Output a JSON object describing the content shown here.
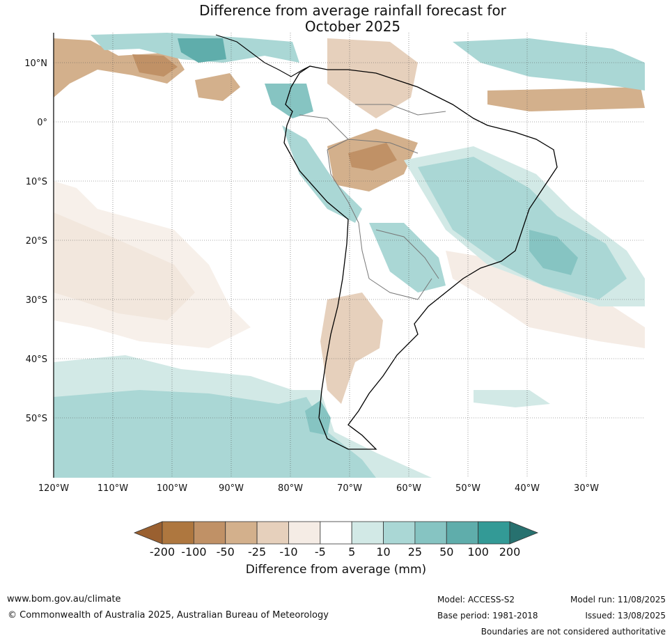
{
  "title": {
    "line1": "Difference from average rainfall forecast for",
    "line2": "October 2025"
  },
  "map": {
    "region": "South America",
    "lat_labels": [
      "10°N",
      "0°",
      "10°S",
      "20°S",
      "30°S",
      "40°S",
      "50°S"
    ],
    "lon_labels": [
      "120°W",
      "110°W",
      "100°W",
      "90°W",
      "80°W",
      "70°W",
      "60°W",
      "50°W",
      "40°W",
      "30°W"
    ],
    "gridlines": true
  },
  "legend": {
    "title": "Difference from average (mm)",
    "tick_labels": [
      "-200",
      "-100",
      "-50",
      "-25",
      "-10",
      "-5",
      "5",
      "10",
      "25",
      "50",
      "100",
      "200"
    ],
    "colors": [
      "#9a6030",
      "#ae773f",
      "#c09166",
      "#d3b08c",
      "#e6d0bc",
      "#f5ece5",
      "#ffffff",
      "#d2e9e6",
      "#aad7d5",
      "#86c4c2",
      "#5fadab",
      "#339a96",
      "#27716f"
    ]
  },
  "footer": {
    "website": "www.bom.gov.au/climate",
    "copyright": "© Commonwealth of Australia 2025, Australian Bureau of Meteorology",
    "model": "Model: ACCESS-S2",
    "base_period": "Base period: 1981-2018",
    "model_run": "Model run: 11/08/2025",
    "issued": "Issued: 13/08/2025",
    "disclaimer": "Boundaries are not considered authoritative"
  }
}
